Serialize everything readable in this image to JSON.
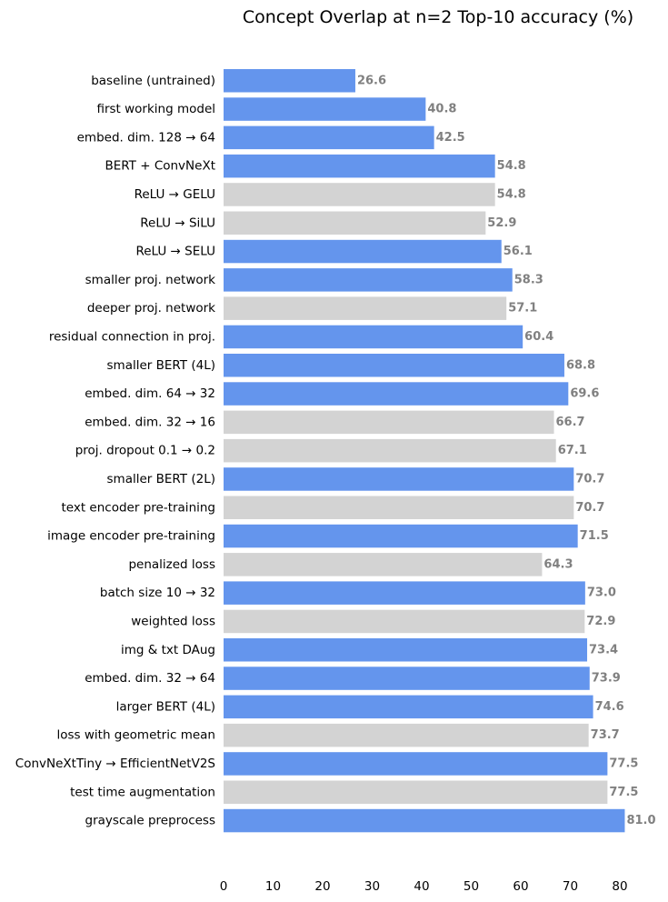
{
  "chart_data": {
    "type": "bar",
    "orientation": "horizontal",
    "title": "Concept Overlap at n=2 Top-10 accuracy (%)",
    "xlabel": "",
    "ylabel": "",
    "xlim": [
      0,
      81
    ],
    "xticks": [
      0,
      10,
      20,
      30,
      40,
      50,
      60,
      70,
      80
    ],
    "grid": false,
    "colors": {
      "accepted": "#6495ED",
      "rejected": "#D3D3D3"
    },
    "categories": [
      "baseline (untrained)",
      "first working model",
      "embed. dim. 128 → 64",
      "BERT + ConvNeXt",
      "ReLU → GELU",
      "ReLU → SiLU",
      "ReLU → SELU",
      "smaller proj. network",
      "deeper proj. network",
      "residual connection in proj.",
      "smaller BERT (4L)",
      "embed. dim. 64 → 32",
      "embed. dim. 32 → 16",
      "proj. dropout 0.1 → 0.2",
      "smaller BERT (2L)",
      "text encoder pre-training",
      "image encoder pre-training",
      "penalized loss",
      "batch size 10 → 32",
      "weighted loss",
      "img & txt DAug",
      "embed. dim. 32 → 64",
      "larger BERT (4L)",
      "loss with geometric mean",
      "ConvNeXtTiny → EfficientNetV2S",
      "test time augmentation",
      "grayscale preprocess"
    ],
    "values": [
      26.6,
      40.8,
      42.5,
      54.8,
      54.8,
      52.9,
      56.1,
      58.3,
      57.1,
      60.4,
      68.8,
      69.6,
      66.7,
      67.1,
      70.7,
      70.7,
      71.5,
      64.3,
      73.0,
      72.9,
      73.4,
      73.9,
      74.6,
      73.7,
      77.5,
      77.5,
      81.0
    ],
    "value_labels": [
      "26.6",
      "40.8",
      "42.5",
      "54.8",
      "54.8",
      "52.9",
      "56.1",
      "58.3",
      "57.1",
      "60.4",
      "68.8",
      "69.6",
      "66.7",
      "67.1",
      "70.7",
      "70.7",
      "71.5",
      "64.3",
      "73.0",
      "72.9",
      "73.4",
      "73.9",
      "74.6",
      "73.7",
      "77.5",
      "77.5",
      "81.0"
    ],
    "bar_status": [
      "accepted",
      "accepted",
      "accepted",
      "accepted",
      "rejected",
      "rejected",
      "accepted",
      "accepted",
      "rejected",
      "accepted",
      "accepted",
      "accepted",
      "rejected",
      "rejected",
      "accepted",
      "rejected",
      "accepted",
      "rejected",
      "accepted",
      "rejected",
      "accepted",
      "accepted",
      "accepted",
      "rejected",
      "accepted",
      "rejected",
      "accepted"
    ]
  }
}
